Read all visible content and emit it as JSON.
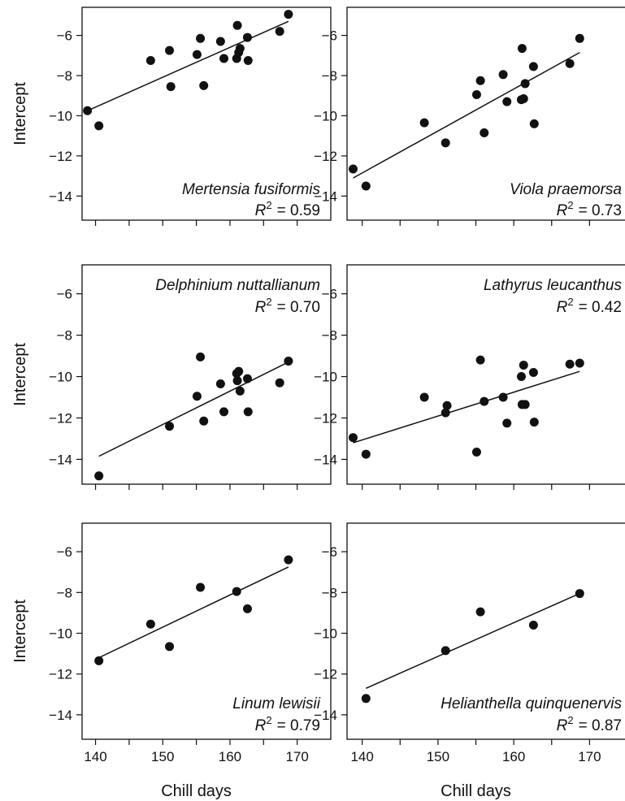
{
  "chart_data": [
    {
      "type": "scatter",
      "species": "Mertensia fusiformis",
      "r2_label": "R",
      "r2_exp": "2",
      "r2_value": "= 0.59",
      "xlabel": "",
      "ylabel": "Intercept",
      "xlim": [
        138,
        175
      ],
      "ylim": [
        -15.2,
        -4.6
      ],
      "xticks": [
        140,
        150,
        160,
        170
      ],
      "yticks": [
        -6,
        -8,
        -10,
        -12,
        -14
      ],
      "points": [
        {
          "x": 138.8,
          "y": -9.75
        },
        {
          "x": 140.5,
          "y": -10.5
        },
        {
          "x": 148.2,
          "y": -7.25
        },
        {
          "x": 151.0,
          "y": -6.75
        },
        {
          "x": 151.2,
          "y": -8.55
        },
        {
          "x": 155.1,
          "y": -6.95
        },
        {
          "x": 155.6,
          "y": -6.15
        },
        {
          "x": 156.1,
          "y": -8.5
        },
        {
          "x": 158.6,
          "y": -6.3
        },
        {
          "x": 159.1,
          "y": -7.15
        },
        {
          "x": 161.0,
          "y": -7.15
        },
        {
          "x": 161.1,
          "y": -5.5
        },
        {
          "x": 161.3,
          "y": -6.85
        },
        {
          "x": 161.5,
          "y": -6.65
        },
        {
          "x": 162.6,
          "y": -6.1
        },
        {
          "x": 162.7,
          "y": -7.25
        },
        {
          "x": 167.4,
          "y": -5.8
        },
        {
          "x": 168.7,
          "y": -4.95
        }
      ],
      "fit": {
        "x": [
          138.8,
          168.7
        ],
        "y": [
          -9.75,
          -5.3
        ]
      }
    },
    {
      "type": "scatter",
      "species": "Viola praemorsa",
      "r2_label": "R",
      "r2_exp": "2",
      "r2_value": "= 0.73",
      "xlabel": "",
      "ylabel": "",
      "xlim": [
        138,
        175
      ],
      "ylim": [
        -15.2,
        -4.6
      ],
      "xticks": [
        140,
        150,
        160,
        170
      ],
      "yticks": [
        -6,
        -8,
        -10,
        -12,
        -14
      ],
      "points": [
        {
          "x": 138.8,
          "y": -12.65
        },
        {
          "x": 140.5,
          "y": -13.5
        },
        {
          "x": 148.2,
          "y": -10.35
        },
        {
          "x": 151.0,
          "y": -11.35
        },
        {
          "x": 155.1,
          "y": -8.95
        },
        {
          "x": 155.6,
          "y": -8.25
        },
        {
          "x": 156.1,
          "y": -10.85
        },
        {
          "x": 158.6,
          "y": -7.95
        },
        {
          "x": 159.1,
          "y": -9.3
        },
        {
          "x": 161.0,
          "y": -9.2
        },
        {
          "x": 161.1,
          "y": -6.65
        },
        {
          "x": 161.3,
          "y": -9.15
        },
        {
          "x": 161.5,
          "y": -8.4
        },
        {
          "x": 162.6,
          "y": -7.55
        },
        {
          "x": 162.7,
          "y": -10.4
        },
        {
          "x": 167.4,
          "y": -7.4
        },
        {
          "x": 168.7,
          "y": -6.15
        }
      ],
      "fit": {
        "x": [
          138.8,
          168.7
        ],
        "y": [
          -13.1,
          -6.85
        ]
      }
    },
    {
      "type": "scatter",
      "species": "Delphinium nuttallianum",
      "r2_label": "R",
      "r2_exp": "2",
      "r2_value": "= 0.70",
      "xlabel": "",
      "ylabel": "Intercept",
      "xlim": [
        138,
        175
      ],
      "ylim": [
        -15.2,
        -4.6
      ],
      "xticks": [
        140,
        150,
        160,
        170
      ],
      "yticks": [
        -6,
        -8,
        -10,
        -12,
        -14
      ],
      "points": [
        {
          "x": 140.5,
          "y": -14.8
        },
        {
          "x": 151.0,
          "y": -12.4
        },
        {
          "x": 155.1,
          "y": -10.95
        },
        {
          "x": 155.6,
          "y": -9.05
        },
        {
          "x": 156.1,
          "y": -12.15
        },
        {
          "x": 158.6,
          "y": -10.35
        },
        {
          "x": 159.1,
          "y": -11.7
        },
        {
          "x": 161.0,
          "y": -9.85
        },
        {
          "x": 161.1,
          "y": -10.2
        },
        {
          "x": 161.3,
          "y": -9.75
        },
        {
          "x": 161.5,
          "y": -10.7
        },
        {
          "x": 162.6,
          "y": -10.1
        },
        {
          "x": 162.7,
          "y": -11.7
        },
        {
          "x": 167.4,
          "y": -10.3
        },
        {
          "x": 168.7,
          "y": -9.25
        }
      ],
      "fit": {
        "x": [
          140.5,
          168.7
        ],
        "y": [
          -13.85,
          -9.3
        ]
      }
    },
    {
      "type": "scatter",
      "species": "Lathyrus leucanthus",
      "r2_label": "R",
      "r2_exp": "2",
      "r2_value": "= 0.42",
      "xlabel": "",
      "ylabel": "",
      "xlim": [
        138,
        175
      ],
      "ylim": [
        -15.2,
        -4.6
      ],
      "xticks": [
        140,
        150,
        160,
        170
      ],
      "yticks": [
        -6,
        -8,
        -10,
        -12,
        -14
      ],
      "points": [
        {
          "x": 138.8,
          "y": -12.95
        },
        {
          "x": 140.5,
          "y": -13.75
        },
        {
          "x": 148.2,
          "y": -11.0
        },
        {
          "x": 151.0,
          "y": -11.75
        },
        {
          "x": 151.2,
          "y": -11.4
        },
        {
          "x": 155.1,
          "y": -13.65
        },
        {
          "x": 155.6,
          "y": -9.2
        },
        {
          "x": 156.1,
          "y": -11.2
        },
        {
          "x": 158.6,
          "y": -11.0
        },
        {
          "x": 159.1,
          "y": -12.25
        },
        {
          "x": 161.0,
          "y": -10.0
        },
        {
          "x": 161.1,
          "y": -11.35
        },
        {
          "x": 161.3,
          "y": -9.45
        },
        {
          "x": 161.5,
          "y": -11.35
        },
        {
          "x": 162.6,
          "y": -9.8
        },
        {
          "x": 162.7,
          "y": -12.2
        },
        {
          "x": 167.4,
          "y": -9.4
        },
        {
          "x": 168.7,
          "y": -9.35
        }
      ],
      "fit": {
        "x": [
          138.8,
          168.7
        ],
        "y": [
          -13.2,
          -9.75
        ]
      }
    },
    {
      "type": "scatter",
      "species": "Linum lewisii",
      "r2_label": "R",
      "r2_exp": "2",
      "r2_value": "= 0.79",
      "xlabel": "Chill days",
      "ylabel": "Intercept",
      "xlim": [
        138,
        175
      ],
      "ylim": [
        -15.2,
        -4.6
      ],
      "xticks": [
        140,
        150,
        160,
        170
      ],
      "yticks": [
        -6,
        -8,
        -10,
        -12,
        -14
      ],
      "points": [
        {
          "x": 140.5,
          "y": -11.35
        },
        {
          "x": 148.2,
          "y": -9.55
        },
        {
          "x": 151.0,
          "y": -10.65
        },
        {
          "x": 155.6,
          "y": -7.75
        },
        {
          "x": 161.0,
          "y": -7.95
        },
        {
          "x": 162.6,
          "y": -8.8
        },
        {
          "x": 168.7,
          "y": -6.4
        }
      ],
      "fit": {
        "x": [
          140.5,
          168.7
        ],
        "y": [
          -11.2,
          -6.75
        ]
      }
    },
    {
      "type": "scatter",
      "species": "Helianthella quinquenervis",
      "r2_label": "R",
      "r2_exp": "2",
      "r2_value": "= 0.87",
      "xlabel": "Chill days",
      "ylabel": "",
      "xlim": [
        138,
        175
      ],
      "ylim": [
        -15.2,
        -4.6
      ],
      "xticks": [
        140,
        150,
        160,
        170
      ],
      "yticks": [
        -6,
        -8,
        -10,
        -12,
        -14
      ],
      "points": [
        {
          "x": 140.5,
          "y": -13.2
        },
        {
          "x": 151.0,
          "y": -10.85
        },
        {
          "x": 155.6,
          "y": -8.95
        },
        {
          "x": 162.6,
          "y": -9.6
        },
        {
          "x": 168.7,
          "y": -8.05
        }
      ],
      "fit": {
        "x": [
          140.5,
          168.7
        ],
        "y": [
          -12.7,
          -8.05
        ]
      }
    }
  ]
}
